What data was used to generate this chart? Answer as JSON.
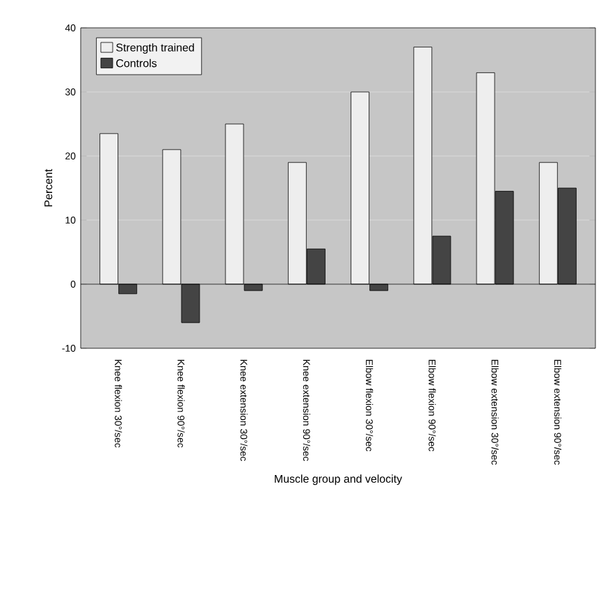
{
  "chart_data": {
    "type": "bar",
    "xlabel": "Muscle group and velocity",
    "ylabel": "Percent",
    "categories": [
      "Knee flexion 30°/sec",
      "Knee flexion 90°/sec",
      "Knee extension 30°/sec",
      "Knee extension 90°/sec",
      "Elbow flexion 30°/sec",
      "Elbow flexion 90°/sec",
      "Elbow extension 30°/sec",
      "Elbow extension 90°/sec"
    ],
    "series": [
      {
        "name": "Strength trained",
        "color": "#eeeeee",
        "values": [
          23.5,
          21,
          25,
          19,
          30,
          37,
          33,
          19
        ]
      },
      {
        "name": "Controls",
        "color": "#444444",
        "values": [
          -1.5,
          -6,
          -1,
          5.5,
          -1,
          7.5,
          14.5,
          15
        ]
      }
    ],
    "ylim": [
      -10,
      40
    ],
    "yticks": [
      -10,
      0,
      10,
      20,
      30,
      40
    ],
    "grid": "y",
    "legend": "top left"
  }
}
